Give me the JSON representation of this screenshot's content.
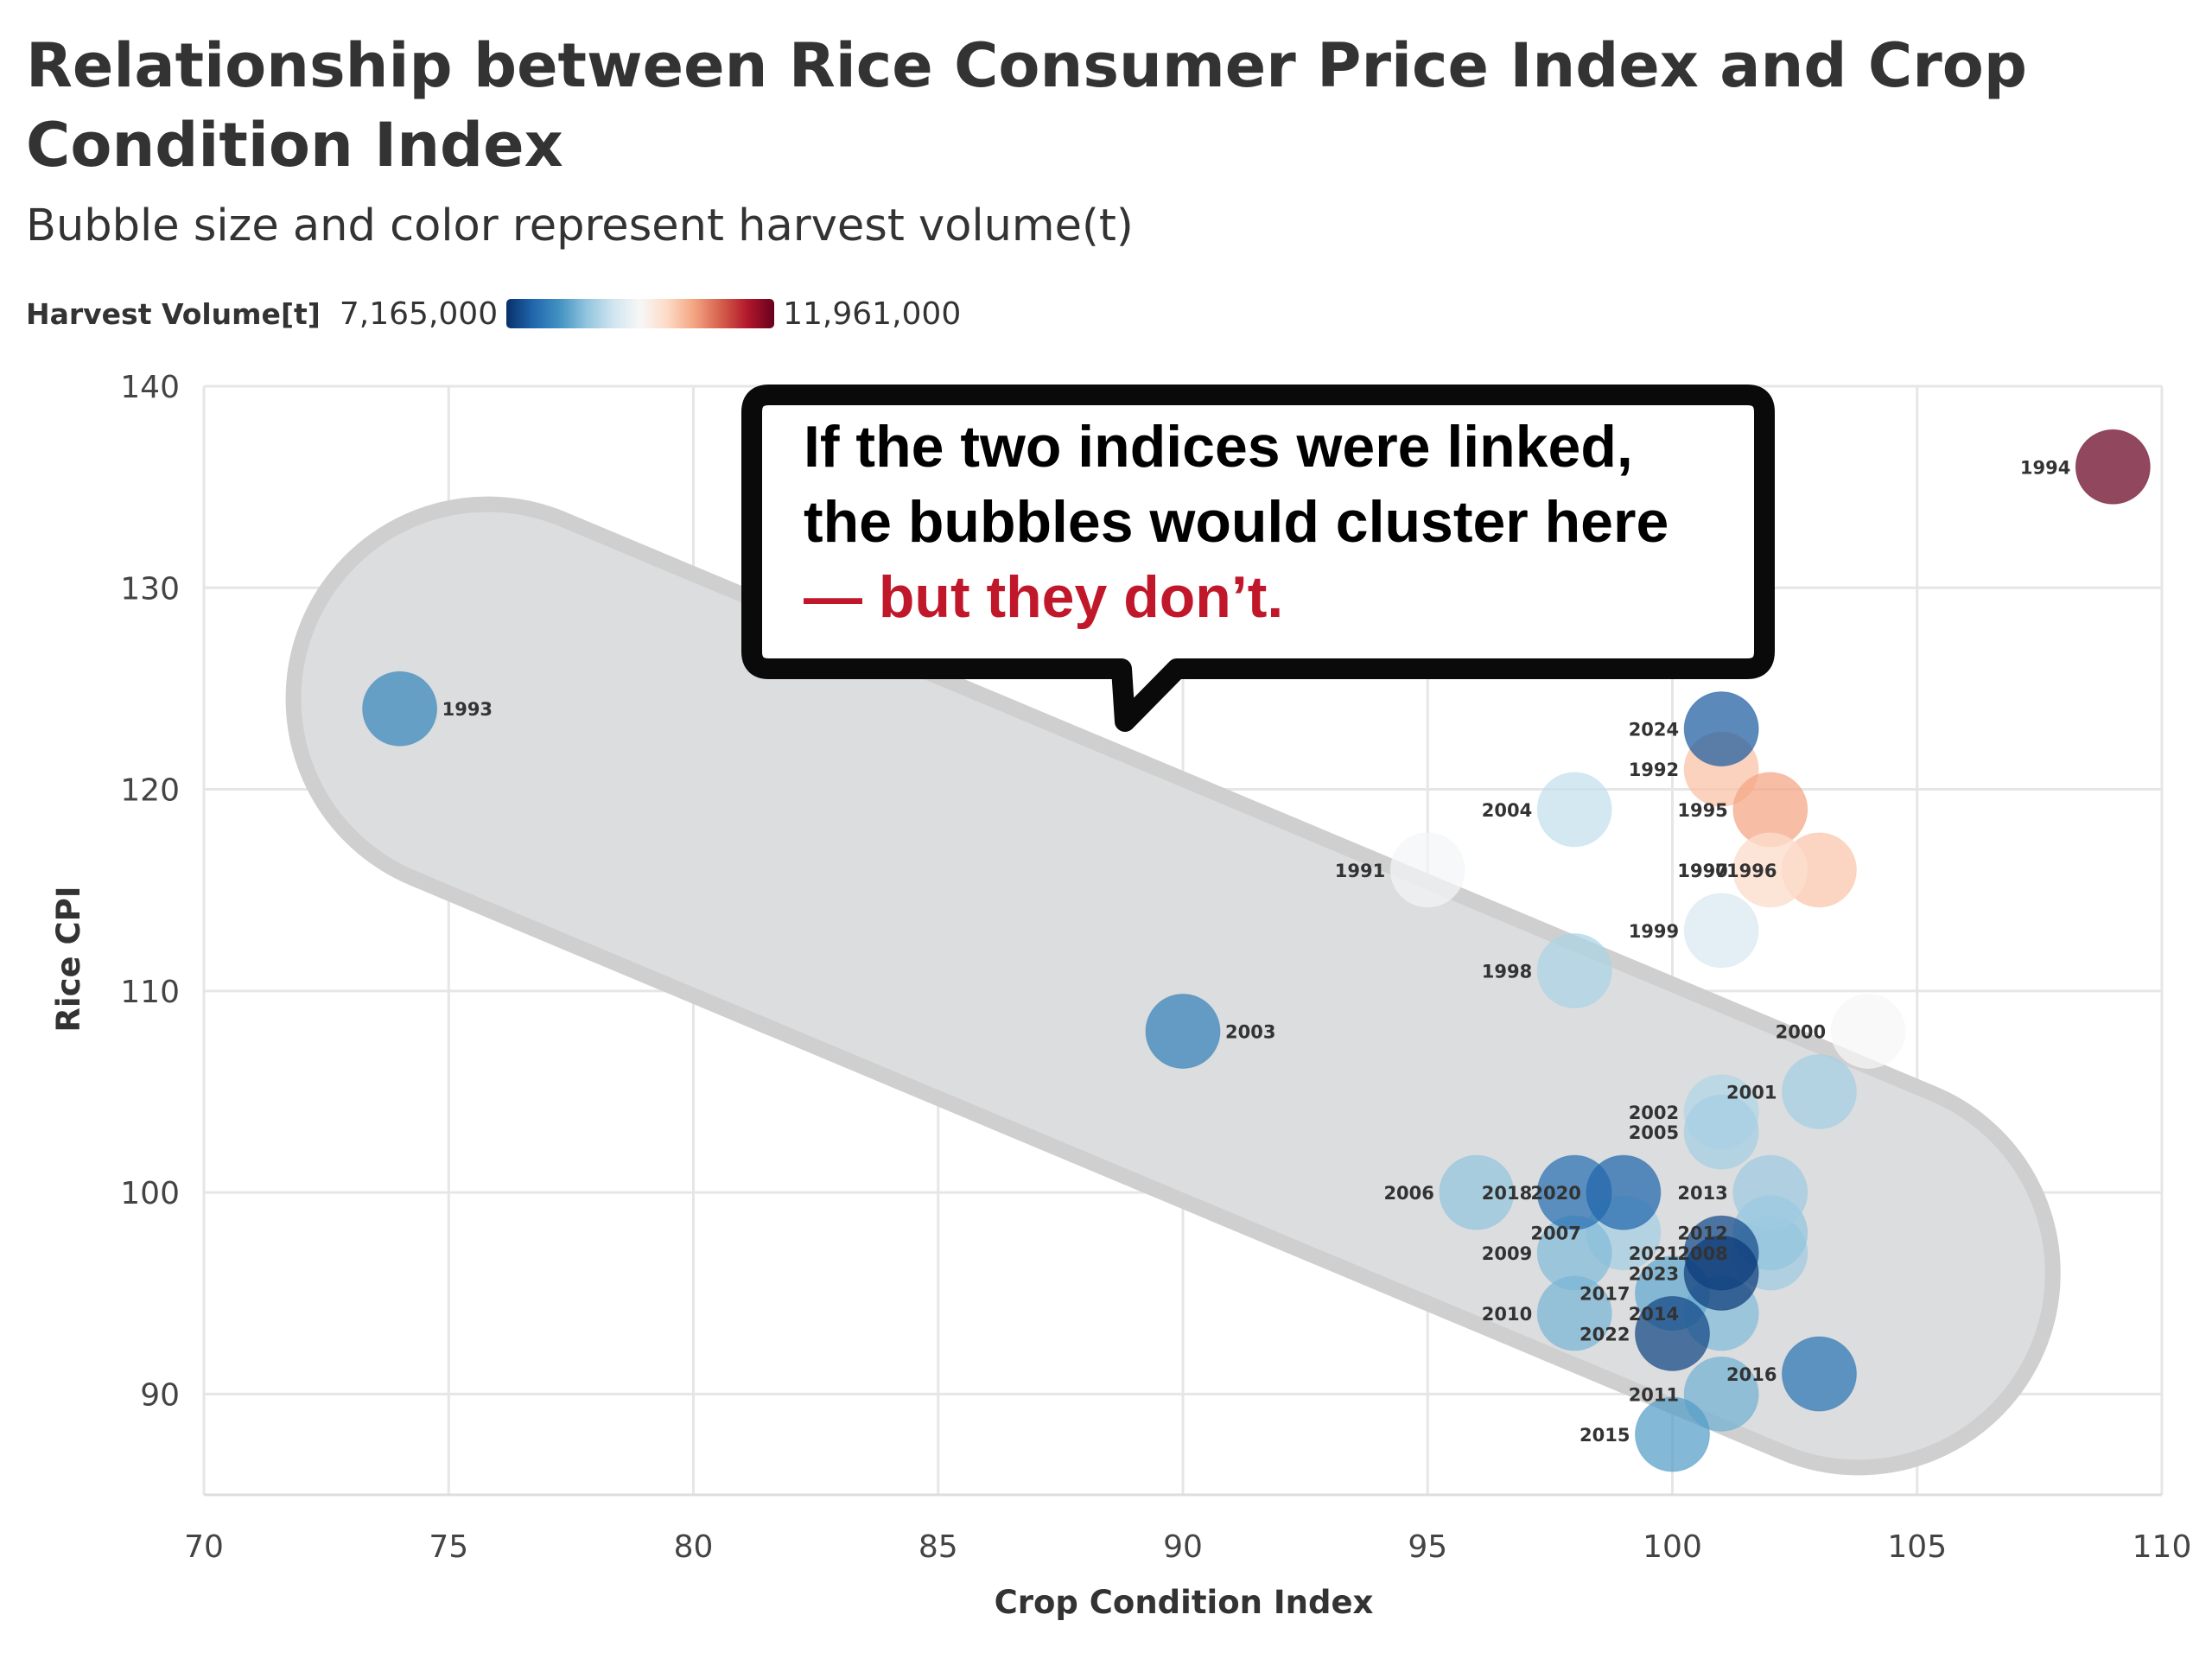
{
  "header": {
    "title": "Relationship between Rice Consumer Price Index and Crop Condition Index",
    "subtitle": "Bubble size and color represent harvest volume(t)"
  },
  "legend": {
    "title": "Harvest Volume[t]",
    "min_label": "7,165,000",
    "max_label": "11,961,000",
    "min_value": 7165000,
    "max_value": 11961000,
    "colors": [
      "#08306b",
      "#2166ac",
      "#4393c3",
      "#92c5de",
      "#d1e5f0",
      "#f7f7f7",
      "#fddbc7",
      "#f4a582",
      "#d6604d",
      "#b2182b",
      "#67001f"
    ]
  },
  "annotation": {
    "line1": "If the two indices were linked,",
    "line2": "the bubbles would cluster here",
    "line3": "— but they don’t.",
    "highlight_color": "#c0182a"
  },
  "chart_data": {
    "type": "scatter",
    "title": "Relationship between Rice Consumer Price Index and Crop Condition Index",
    "subtitle": "Bubble size and color represent harvest volume(t)",
    "xlabel": "Crop Condition Index",
    "ylabel": "Rice CPI",
    "xlim": [
      70,
      110
    ],
    "ylim": [
      85,
      140
    ],
    "xticks": [
      70,
      75,
      80,
      85,
      90,
      95,
      100,
      105,
      110
    ],
    "yticks": [
      90,
      100,
      110,
      120,
      130,
      140
    ],
    "grid": true,
    "color_scale": "RdBu reversed (blue = low harvest, red = high harvest)",
    "points": [
      {
        "label": "1990",
        "x": 102,
        "y": 116,
        "tone": 0.57
      },
      {
        "label": "1991",
        "x": 95,
        "y": 116,
        "tone": 0.49
      },
      {
        "label": "1992",
        "x": 101,
        "y": 121,
        "tone": 0.65
      },
      {
        "label": "1993",
        "x": 74,
        "y": 124,
        "tone": 0.17
      },
      {
        "label": "1994",
        "x": 109,
        "y": 136,
        "tone": 1.0
      },
      {
        "label": "1995",
        "x": 102,
        "y": 119,
        "tone": 0.7
      },
      {
        "label": "1996",
        "x": 103,
        "y": 116,
        "tone": 0.64
      },
      {
        "label": "1997",
        "x": 102,
        "y": 116,
        "tone": 0.58
      },
      {
        "label": "1998",
        "x": 98,
        "y": 111,
        "tone": 0.34
      },
      {
        "label": "1999",
        "x": 101,
        "y": 113,
        "tone": 0.42
      },
      {
        "label": "2000",
        "x": 104,
        "y": 108,
        "tone": 0.5
      },
      {
        "label": "2001",
        "x": 103,
        "y": 105,
        "tone": 0.33
      },
      {
        "label": "2002",
        "x": 101,
        "y": 104,
        "tone": 0.35
      },
      {
        "label": "2003",
        "x": 90,
        "y": 108,
        "tone": 0.16
      },
      {
        "label": "2004",
        "x": 98,
        "y": 119,
        "tone": 0.38
      },
      {
        "label": "2005",
        "x": 101,
        "y": 103,
        "tone": 0.33
      },
      {
        "label": "2006",
        "x": 96,
        "y": 100,
        "tone": 0.3
      },
      {
        "label": "2007",
        "x": 99,
        "y": 98,
        "tone": 0.33
      },
      {
        "label": "2008",
        "x": 102,
        "y": 97,
        "tone": 0.32
      },
      {
        "label": "2009",
        "x": 98,
        "y": 97,
        "tone": 0.28
      },
      {
        "label": "2010",
        "x": 98,
        "y": 94,
        "tone": 0.27
      },
      {
        "label": "2011",
        "x": 101,
        "y": 90,
        "tone": 0.26
      },
      {
        "label": "2012",
        "x": 102,
        "y": 98,
        "tone": 0.3
      },
      {
        "label": "2013",
        "x": 102,
        "y": 100,
        "tone": 0.32
      },
      {
        "label": "2014",
        "x": 101,
        "y": 94,
        "tone": 0.28
      },
      {
        "label": "2015",
        "x": 100,
        "y": 88,
        "tone": 0.22
      },
      {
        "label": "2016",
        "x": 103,
        "y": 91,
        "tone": 0.13
      },
      {
        "label": "2017",
        "x": 100,
        "y": 95,
        "tone": 0.24
      },
      {
        "label": "2018",
        "x": 98,
        "y": 100,
        "tone": 0.12
      },
      {
        "label": "2020",
        "x": 99,
        "y": 100,
        "tone": 0.1
      },
      {
        "label": "2021",
        "x": 101,
        "y": 97,
        "tone": 0.05
      },
      {
        "label": "2022",
        "x": 100,
        "y": 93,
        "tone": 0.04
      },
      {
        "label": "2023",
        "x": 101,
        "y": 96,
        "tone": 0.02
      },
      {
        "label": "2024",
        "x": 101,
        "y": 123,
        "tone": 0.08
      }
    ]
  }
}
